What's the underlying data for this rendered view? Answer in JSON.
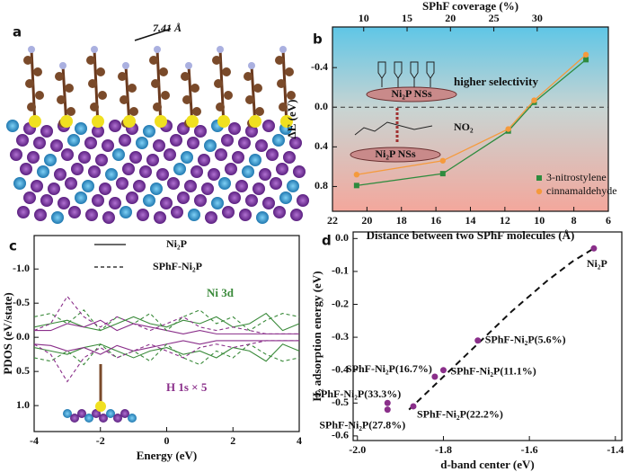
{
  "panel_a": {
    "label": "a",
    "annotation": "7.41 Å"
  },
  "chart_data": [
    {
      "type": "line",
      "panel_label": "b",
      "xlabel": "Distance between two SPhF molecules (Å)",
      "x2label": "SPhF coverage (%)",
      "ylabel": "ΔE (eV)",
      "x": [
        20.6,
        15.6,
        11.8,
        10.3,
        7.3
      ],
      "series": [
        {
          "name": "3-nitrostylene",
          "color": "#2e8b3e",
          "marker": "square",
          "values": [
            0.79,
            0.67,
            0.24,
            -0.05,
            -0.48
          ]
        },
        {
          "name": "cinnamaldehyde",
          "color": "#f59a3c",
          "marker": "circle",
          "values": [
            0.68,
            0.54,
            0.22,
            -0.07,
            -0.53
          ]
        }
      ],
      "xlim": [
        22,
        6
      ],
      "xticks": [
        22,
        20,
        18,
        16,
        14,
        12,
        10,
        8,
        6
      ],
      "x2lim": [
        6.4,
        38.2
      ],
      "x2ticks": [
        10,
        15,
        20,
        25,
        30
      ],
      "ylim": [
        1.05,
        -0.81
      ],
      "yticks": [
        -0.4,
        {
          "value": 0,
          "label": "0.0"
        },
        0.4,
        0.8
      ],
      "reference_line": 0,
      "annotations": [
        "higher selectivity",
        "Ni₂P NSs",
        "Ni₂P NSs",
        "NO₂"
      ]
    },
    {
      "type": "pdos",
      "panel_label": "c",
      "xlabel": "Energy (eV)",
      "ylabel": "PDOS (eV/state)",
      "x": [
        -4,
        -3.5,
        -3,
        -2.5,
        -2,
        -1.5,
        -1,
        -0.5,
        0,
        0.5,
        1,
        1.5,
        2,
        2.5,
        3,
        3.5,
        4
      ],
      "series": [
        {
          "name": "Ni₂P",
          "dashed": false,
          "lines": [
            {
              "color": "#3a8a3a",
              "values": [
                -0.15,
                -0.2,
                -0.25,
                -0.15,
                -0.1,
                -0.2,
                -0.3,
                -0.2,
                -0.15,
                -0.25,
                -0.2,
                -0.3,
                -0.15,
                -0.2,
                -0.35,
                -0.1,
                -0.2
              ]
            },
            {
              "color": "#3a8a3a",
              "values": [
                0.15,
                0.2,
                0.25,
                0.15,
                0.1,
                0.2,
                0.3,
                0.2,
                0.15,
                0.25,
                0.2,
                0.3,
                0.15,
                0.2,
                0.35,
                0.1,
                0.2
              ]
            },
            {
              "color": "#8a2f8a",
              "values": [
                -0.1,
                -0.1,
                -0.2,
                -0.15,
                -0.25,
                -0.1,
                -0.2,
                -0.15,
                -0.1,
                -0.05,
                -0.1,
                -0.05,
                -0.05,
                -0.05,
                -0.05,
                -0.05,
                -0.05
              ]
            },
            {
              "color": "#8a2f8a",
              "values": [
                0.1,
                0.12,
                0.2,
                0.15,
                0.25,
                0.12,
                0.2,
                0.15,
                0.1,
                0.05,
                0.1,
                0.05,
                0.05,
                0.05,
                0.05,
                0.05,
                0.05
              ]
            }
          ]
        },
        {
          "name": "SPhF-Ni₂P",
          "dashed": true,
          "lines": [
            {
              "color": "#3a8a3a",
              "values": [
                -0.3,
                -0.35,
                -0.2,
                -0.4,
                -0.1,
                -0.3,
                -0.2,
                -0.35,
                -0.1,
                -0.3,
                -0.4,
                -0.2,
                -0.3,
                -0.1,
                -0.25,
                -0.35,
                -0.3
              ]
            },
            {
              "color": "#3a8a3a",
              "values": [
                0.3,
                0.35,
                0.2,
                0.4,
                0.1,
                0.3,
                0.2,
                0.35,
                0.1,
                0.3,
                0.4,
                0.2,
                0.3,
                0.1,
                0.25,
                0.35,
                0.3
              ]
            },
            {
              "color": "#8a2f8a",
              "values": [
                -0.1,
                -0.2,
                -0.6,
                -0.3,
                -0.15,
                -0.3,
                -0.2,
                -0.1,
                -0.2,
                -0.3,
                -0.15,
                -0.1,
                -0.15,
                -0.1,
                -0.05,
                -0.05,
                -0.05
              ]
            },
            {
              "color": "#8a2f8a",
              "values": [
                0.1,
                0.25,
                0.65,
                0.3,
                0.15,
                0.3,
                0.2,
                0.1,
                0.2,
                0.3,
                0.15,
                0.1,
                0.15,
                0.1,
                0.05,
                0.05,
                0.05
              ]
            }
          ]
        }
      ],
      "xlim": [
        -4,
        4
      ],
      "xticks": [
        -4,
        -2,
        0,
        2,
        4
      ],
      "ylim": [
        1.38,
        -1.49
      ],
      "yticks": [
        {
          "value": -1,
          "label": "-1.0"
        },
        -0.5,
        {
          "value": 0,
          "label": "0.0"
        },
        0.5,
        {
          "value": 1,
          "label": "1.0"
        }
      ],
      "annotations": [
        "Ni 3d",
        "H 1s × 5"
      ]
    },
    {
      "type": "scatter",
      "panel_label": "d",
      "xlabel": "d-band center (eV)",
      "ylabel": "H₂ adsorption energy (eV)",
      "x": [
        -1.45,
        -1.72,
        -1.8,
        -1.82,
        -1.87,
        -1.93,
        -1.93
      ],
      "values": [
        -0.03,
        -0.31,
        -0.4,
        -0.42,
        -0.51,
        -0.52,
        -0.5
      ],
      "labels": [
        "Ni₂P",
        "SPhF-Ni₂P(5.6%)",
        "SPhF-Ni₂P(11.1%)",
        "SPhF-Ni₂P(16.7%)",
        "SPhF-Ni₂P(22.2%)",
        "SPhF-Ni₂P(27.8%)",
        "SPhF-Ni₂P(33.3%)"
      ],
      "color": "#8a2f8a",
      "fit": {
        "x": [
          -1.88,
          -1.8,
          -1.72,
          -1.64,
          -1.56,
          -1.5,
          -1.45
        ],
        "values": [
          -0.52,
          -0.42,
          -0.32,
          -0.22,
          -0.13,
          -0.07,
          -0.03
        ]
      },
      "xlim": [
        -2.01,
        -1.385
      ],
      "xticks": [
        {
          "value": -2,
          "label": "-2.0"
        },
        -1.8,
        -1.6,
        -1.4
      ],
      "ylim": [
        -0.614,
        0.02
      ],
      "yticks": [
        {
          "value": 0,
          "label": "0.0"
        },
        -0.1,
        -0.2,
        -0.3,
        -0.4,
        -0.5,
        -0.6
      ]
    }
  ]
}
